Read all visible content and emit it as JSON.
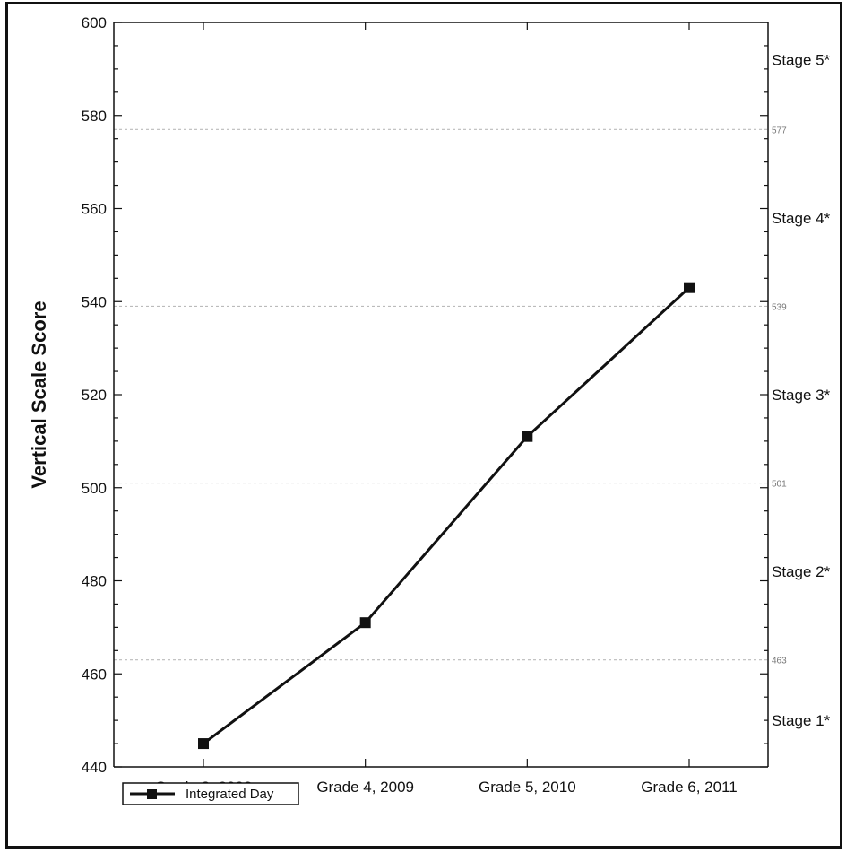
{
  "chart_data": {
    "type": "line",
    "categories": [
      "Grade 3, 2008",
      "Grade 4, 2009",
      "Grade 5, 2010",
      "Grade 6, 2011"
    ],
    "series": [
      {
        "name": "Integrated Day",
        "values": [
          445,
          471,
          511,
          543
        ],
        "color": "#111111"
      }
    ],
    "ylabel": "Vertical Scale Score",
    "xlabel": "",
    "ylim": [
      440,
      600
    ],
    "yticks": [
      440,
      460,
      480,
      500,
      520,
      540,
      560,
      580,
      600
    ],
    "grid": false,
    "cut_scores": [
      {
        "value": 463,
        "label": "463"
      },
      {
        "value": 501,
        "label": "501"
      },
      {
        "value": 539,
        "label": "539"
      },
      {
        "value": 577,
        "label": "577"
      }
    ],
    "stages": [
      {
        "label": "Stage 1*",
        "value": 450
      },
      {
        "label": "Stage 2*",
        "value": 482
      },
      {
        "label": "Stage 3*",
        "value": 520
      },
      {
        "label": "Stage 4*",
        "value": 558
      },
      {
        "label": "Stage 5*",
        "value": 592
      }
    ],
    "legend_position": "bottom-left"
  }
}
